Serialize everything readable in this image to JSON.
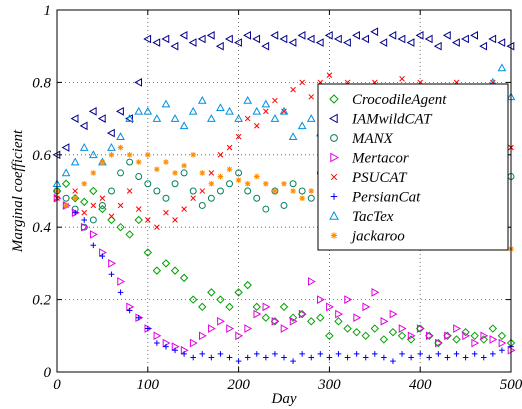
{
  "chart_data": {
    "type": "scatter",
    "xlabel": "Day",
    "ylabel": "Marginal coefficient",
    "xlim": [
      0,
      500
    ],
    "ylim": [
      0,
      1
    ],
    "xticks": [
      0,
      100,
      200,
      300,
      400,
      500
    ],
    "yticks": [
      0,
      0.2,
      0.4,
      0.6,
      0.8,
      1
    ],
    "ytick_labels": [
      "0",
      "0.2",
      "0.4",
      "0.6",
      "0.8",
      "1"
    ],
    "grid": true,
    "legend_position": "right, inside plot",
    "x": [
      0,
      10,
      20,
      30,
      40,
      50,
      60,
      70,
      80,
      90,
      100,
      110,
      120,
      130,
      140,
      150,
      160,
      170,
      180,
      190,
      200,
      210,
      220,
      230,
      240,
      250,
      260,
      270,
      280,
      290,
      300,
      310,
      320,
      330,
      340,
      350,
      360,
      370,
      380,
      390,
      400,
      410,
      420,
      430,
      440,
      450,
      460,
      470,
      480,
      490,
      500
    ],
    "series": [
      {
        "name": "CrocodileAgent",
        "marker": "diamond",
        "color": "#00a000",
        "values": [
          0.5,
          0.52,
          0.48,
          0.47,
          0.5,
          0.45,
          0.42,
          0.4,
          0.38,
          0.42,
          0.33,
          0.28,
          0.3,
          0.28,
          0.26,
          0.2,
          0.18,
          0.22,
          0.2,
          0.18,
          0.22,
          0.24,
          0.18,
          0.15,
          0.14,
          0.18,
          0.15,
          0.16,
          0.14,
          0.15,
          0.1,
          0.14,
          0.12,
          0.11,
          0.1,
          0.12,
          0.09,
          0.11,
          0.1,
          0.09,
          0.12,
          0.1,
          0.08,
          0.1,
          0.09,
          0.11,
          0.1,
          0.09,
          0.12,
          0.1,
          0.08
        ]
      },
      {
        "name": "IAMwildCAT",
        "marker": "triangle-left",
        "color": "#00008b",
        "values": [
          0.6,
          0.62,
          0.7,
          0.68,
          0.72,
          0.7,
          0.66,
          0.72,
          0.7,
          0.8,
          0.92,
          0.91,
          0.92,
          0.9,
          0.93,
          0.91,
          0.92,
          0.93,
          0.9,
          0.92,
          0.91,
          0.93,
          0.92,
          0.9,
          0.93,
          0.92,
          0.91,
          0.93,
          0.92,
          0.91,
          0.93,
          0.92,
          0.91,
          0.93,
          0.92,
          0.94,
          0.91,
          0.93,
          0.92,
          0.91,
          0.93,
          0.92,
          0.9,
          0.93,
          0.91,
          0.92,
          0.93,
          0.9,
          0.92,
          0.91,
          0.9
        ]
      },
      {
        "name": "MANX",
        "marker": "circle",
        "color": "#008060",
        "values": [
          0.5,
          0.48,
          0.45,
          0.4,
          0.42,
          0.46,
          0.5,
          0.55,
          0.58,
          0.54,
          0.52,
          0.5,
          0.48,
          0.52,
          0.55,
          0.5,
          0.46,
          0.48,
          0.5,
          0.52,
          0.55,
          0.5,
          0.48,
          0.45,
          0.5,
          0.46,
          0.52,
          0.5,
          0.48,
          0.55,
          0.52,
          0.5,
          0.49,
          0.47,
          0.55,
          0.52,
          0.5,
          0.48,
          0.5,
          0.52,
          0.55,
          0.53,
          0.5,
          0.48,
          0.51,
          0.55,
          0.52,
          0.5,
          0.48,
          0.55,
          0.54
        ]
      },
      {
        "name": "Mertacor",
        "marker": "triangle-right",
        "color": "#e000e0",
        "values": [
          0.48,
          0.46,
          0.44,
          0.4,
          0.38,
          0.33,
          0.3,
          0.25,
          0.18,
          0.15,
          0.12,
          0.1,
          0.08,
          0.07,
          0.06,
          0.08,
          0.1,
          0.12,
          0.14,
          0.12,
          0.1,
          0.12,
          0.16,
          0.18,
          0.14,
          0.12,
          0.14,
          0.16,
          0.25,
          0.2,
          0.18,
          0.16,
          0.2,
          0.15,
          0.18,
          0.22,
          0.14,
          0.16,
          0.12,
          0.1,
          0.12,
          0.1,
          0.08,
          0.1,
          0.12,
          0.1,
          0.08,
          0.1,
          0.09,
          0.08,
          0.06
        ]
      },
      {
        "name": "PSUCAT",
        "marker": "x",
        "color": "#ff0000",
        "values": [
          0.48,
          0.46,
          0.5,
          0.44,
          0.46,
          0.48,
          0.43,
          0.46,
          0.5,
          0.45,
          0.42,
          0.4,
          0.44,
          0.42,
          0.45,
          0.48,
          0.5,
          0.55,
          0.6,
          0.62,
          0.65,
          0.7,
          0.68,
          0.72,
          0.75,
          0.72,
          0.78,
          0.8,
          0.76,
          0.8,
          0.82,
          0.78,
          0.8,
          0.76,
          0.78,
          0.8,
          0.77,
          0.79,
          0.81,
          0.78,
          0.8,
          0.77,
          0.76,
          0.79,
          0.8,
          0.78,
          0.76,
          0.78,
          0.8,
          0.77,
          0.62
        ]
      },
      {
        "name": "PersianCat",
        "marker": "plus",
        "color": "#0000ff",
        "values": [
          0.5,
          0.46,
          0.44,
          0.42,
          0.35,
          0.32,
          0.27,
          0.22,
          0.17,
          0.15,
          0.12,
          0.08,
          0.07,
          0.06,
          0.05,
          0.04,
          0.05,
          0.04,
          0.05,
          0.04,
          0.03,
          0.04,
          0.05,
          0.04,
          0.05,
          0.04,
          0.03,
          0.05,
          0.04,
          0.05,
          0.04,
          0.05,
          0.04,
          0.05,
          0.04,
          0.05,
          0.04,
          0.03,
          0.05,
          0.04,
          0.05,
          0.04,
          0.05,
          0.04,
          0.05,
          0.04,
          0.05,
          0.04,
          0.05,
          0.06,
          0.07
        ]
      },
      {
        "name": "TacTex",
        "marker": "triangle-up",
        "color": "#0090e0",
        "values": [
          0.52,
          0.55,
          0.58,
          0.62,
          0.6,
          0.58,
          0.62,
          0.65,
          0.7,
          0.72,
          0.72,
          0.7,
          0.74,
          0.7,
          0.68,
          0.72,
          0.75,
          0.7,
          0.73,
          0.72,
          0.7,
          0.75,
          0.72,
          0.74,
          0.7,
          0.72,
          0.65,
          0.68,
          0.7,
          0.66,
          0.7,
          0.68,
          0.72,
          0.7,
          0.74,
          0.68,
          0.72,
          0.66,
          0.7,
          0.72,
          0.74,
          0.7,
          0.72,
          0.75,
          0.73,
          0.7,
          0.72,
          0.75,
          0.8,
          0.84,
          0.76
        ]
      },
      {
        "name": "jackaroo",
        "marker": "star",
        "color": "#ff8c00",
        "values": [
          0.5,
          0.46,
          0.48,
          0.52,
          0.55,
          0.58,
          0.6,
          0.62,
          0.6,
          0.58,
          0.6,
          0.56,
          0.58,
          0.55,
          0.57,
          0.6,
          0.55,
          0.52,
          0.54,
          0.56,
          0.53,
          0.52,
          0.54,
          0.52,
          0.5,
          0.52,
          0.5,
          0.48,
          0.5,
          0.52,
          0.5,
          0.48,
          0.46,
          0.5,
          0.48,
          0.5,
          0.46,
          0.48,
          0.5,
          0.47,
          0.48,
          0.46,
          0.48,
          0.5,
          0.46,
          0.48,
          0.5,
          0.46,
          0.44,
          0.42,
          0.34
        ]
      }
    ]
  }
}
